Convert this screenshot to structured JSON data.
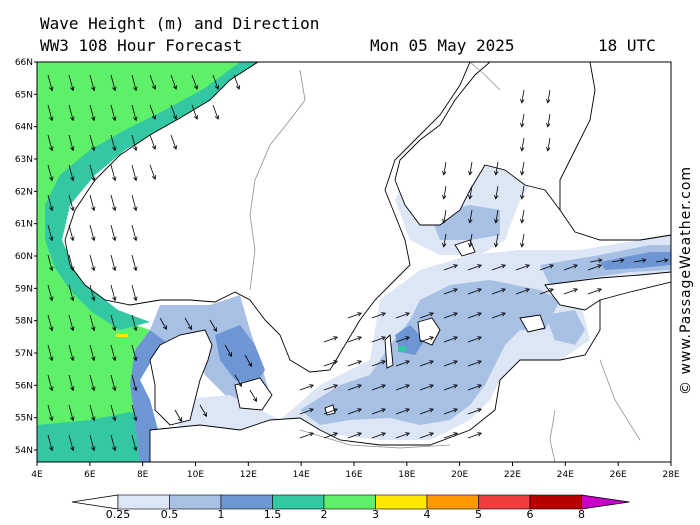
{
  "header": {
    "title": "Wave Height (m) and Direction",
    "model": "WW3 108 Hour Forecast",
    "date": "Mon 05 May 2025",
    "time": "18 UTC"
  },
  "credit": "© www.PassageWeather.com",
  "axes": {
    "lat_labels": [
      "66N",
      "65N",
      "64N",
      "63N",
      "62N",
      "61N",
      "60N",
      "59N",
      "58N",
      "57N",
      "56N",
      "55N",
      "54N"
    ],
    "lon_labels": [
      "4E",
      "6E",
      "8E",
      "10E",
      "12E",
      "14E",
      "16E",
      "18E",
      "20E",
      "22E",
      "24E",
      "26E",
      "28E"
    ]
  },
  "legend": {
    "labels": [
      "0.25",
      "0.5",
      "1",
      "1.5",
      "2",
      "3",
      "4",
      "5",
      "6",
      "8"
    ],
    "colors": [
      "#ffffff",
      "#dce6f5",
      "#a8c0e4",
      "#6f96d4",
      "#33c7a3",
      "#5ff06a",
      "#ffe800",
      "#ff9900",
      "#f03c3c",
      "#b80000",
      "#c800c8"
    ]
  },
  "colors": {
    "land": "#ffffff",
    "coast": "#000000",
    "sea_calm": "#ffffff",
    "sea_025": "#dce6f5",
    "sea_05": "#a8c0e4",
    "sea_1": "#6f96d4",
    "sea_15": "#33c7a3",
    "sea_2": "#5ff06a",
    "sea_3": "#ffe800"
  }
}
